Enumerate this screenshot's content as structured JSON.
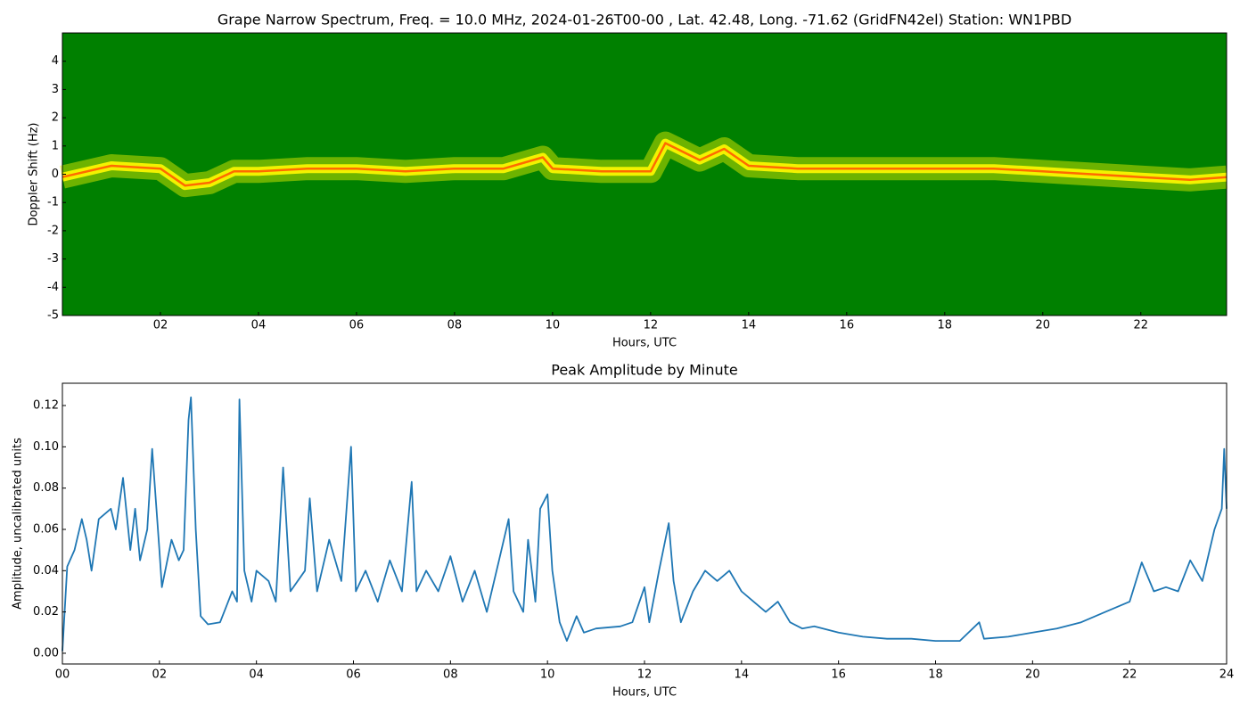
{
  "chart_data": [
    {
      "type": "spectrogram",
      "title": "Grape Narrow Spectrum, Freq. = 10.0 MHz, 2024-01-26T00-00 , Lat.  42.48, Long. -71.62 (GridFN42el) Station: WN1PBD",
      "xlabel": "Hours, UTC",
      "ylabel": "Doppler Shift (Hz)",
      "background_color": "#008000",
      "color": "#ff6a00",
      "glow_color": "#f2f200",
      "x": [
        0,
        1,
        2,
        2.5,
        3,
        3.5,
        4,
        5,
        6,
        7,
        8,
        9,
        9.8,
        10,
        11,
        12,
        12.3,
        13,
        13.5,
        14,
        15,
        16,
        17,
        18,
        19,
        20,
        21,
        22,
        23,
        23.75
      ],
      "values": [
        -0.1,
        0.3,
        0.2,
        -0.4,
        -0.3,
        0.1,
        0.1,
        0.2,
        0.2,
        0.1,
        0.2,
        0.2,
        0.6,
        0.2,
        0.1,
        0.1,
        1.1,
        0.5,
        0.9,
        0.3,
        0.2,
        0.2,
        0.2,
        0.2,
        0.2,
        0.1,
        0.0,
        -0.1,
        -0.2,
        -0.1
      ],
      "xlim": [
        0,
        23.75
      ],
      "ylim": [
        -5,
        5
      ],
      "xticks": [
        {
          "value": 2,
          "label": "02"
        },
        {
          "value": 4,
          "label": "04"
        },
        {
          "value": 6,
          "label": "06"
        },
        {
          "value": 8,
          "label": "08"
        },
        {
          "value": 10,
          "label": "10"
        },
        {
          "value": 12,
          "label": "12"
        },
        {
          "value": 14,
          "label": "14"
        },
        {
          "value": 16,
          "label": "16"
        },
        {
          "value": 18,
          "label": "18"
        },
        {
          "value": 20,
          "label": "20"
        },
        {
          "value": 22,
          "label": "22"
        }
      ],
      "yticks": [
        -5,
        -4,
        -3,
        -2,
        -1,
        0,
        1,
        2,
        3,
        4
      ]
    },
    {
      "type": "line",
      "title": "Peak Amplitude by Minute",
      "xlabel": "Hours, UTC",
      "ylabel": "Amplitude, uncalibrated units",
      "color": "#1f77b4",
      "x": [
        0,
        0.1,
        0.25,
        0.4,
        0.5,
        0.6,
        0.75,
        1.0,
        1.1,
        1.25,
        1.4,
        1.5,
        1.6,
        1.75,
        1.85,
        2.0,
        2.05,
        2.25,
        2.4,
        2.5,
        2.6,
        2.65,
        2.75,
        2.85,
        3.0,
        3.25,
        3.5,
        3.6,
        3.65,
        3.75,
        3.9,
        4.0,
        4.25,
        4.4,
        4.55,
        4.7,
        5.0,
        5.1,
        5.25,
        5.5,
        5.75,
        5.95,
        6.05,
        6.25,
        6.5,
        6.75,
        7.0,
        7.2,
        7.3,
        7.5,
        7.75,
        8.0,
        8.25,
        8.5,
        8.75,
        9.0,
        9.2,
        9.3,
        9.5,
        9.6,
        9.75,
        9.85,
        10.0,
        10.1,
        10.25,
        10.4,
        10.6,
        10.75,
        11.0,
        11.5,
        11.75,
        12.0,
        12.1,
        12.3,
        12.5,
        12.6,
        12.75,
        13.0,
        13.25,
        13.5,
        13.75,
        14.0,
        14.25,
        14.5,
        14.75,
        15.0,
        15.25,
        15.5,
        16.0,
        16.5,
        17.0,
        17.5,
        18.0,
        18.5,
        18.9,
        19.0,
        19.5,
        20.0,
        20.5,
        21.0,
        21.5,
        22.0,
        22.25,
        22.5,
        22.75,
        23.0,
        23.25,
        23.5,
        23.75,
        23.9,
        23.95,
        24.0
      ],
      "values": [
        0.001,
        0.042,
        0.05,
        0.065,
        0.055,
        0.04,
        0.065,
        0.07,
        0.06,
        0.085,
        0.05,
        0.07,
        0.045,
        0.06,
        0.099,
        0.05,
        0.032,
        0.055,
        0.045,
        0.05,
        0.113,
        0.124,
        0.06,
        0.018,
        0.014,
        0.015,
        0.03,
        0.025,
        0.123,
        0.04,
        0.025,
        0.04,
        0.035,
        0.025,
        0.09,
        0.03,
        0.04,
        0.075,
        0.03,
        0.055,
        0.035,
        0.1,
        0.03,
        0.04,
        0.025,
        0.045,
        0.03,
        0.083,
        0.03,
        0.04,
        0.03,
        0.047,
        0.025,
        0.04,
        0.02,
        0.045,
        0.065,
        0.03,
        0.02,
        0.055,
        0.025,
        0.07,
        0.077,
        0.04,
        0.015,
        0.006,
        0.018,
        0.01,
        0.012,
        0.013,
        0.015,
        0.032,
        0.015,
        0.04,
        0.063,
        0.035,
        0.015,
        0.03,
        0.04,
        0.035,
        0.04,
        0.03,
        0.025,
        0.02,
        0.025,
        0.015,
        0.012,
        0.013,
        0.01,
        0.008,
        0.007,
        0.007,
        0.006,
        0.006,
        0.015,
        0.007,
        0.008,
        0.01,
        0.012,
        0.015,
        0.02,
        0.025,
        0.044,
        0.03,
        0.032,
        0.03,
        0.045,
        0.035,
        0.06,
        0.07,
        0.099,
        0.07
      ],
      "xlim": [
        0,
        24
      ],
      "ylim": [
        -0.0052,
        0.1308
      ],
      "xticks": [
        {
          "value": 0,
          "label": "00"
        },
        {
          "value": 2,
          "label": "02"
        },
        {
          "value": 4,
          "label": "04"
        },
        {
          "value": 6,
          "label": "06"
        },
        {
          "value": 8,
          "label": "08"
        },
        {
          "value": 10,
          "label": "10"
        },
        {
          "value": 12,
          "label": "12"
        },
        {
          "value": 14,
          "label": "14"
        },
        {
          "value": 16,
          "label": "16"
        },
        {
          "value": 18,
          "label": "18"
        },
        {
          "value": 20,
          "label": "20"
        },
        {
          "value": 22,
          "label": "22"
        },
        {
          "value": 24,
          "label": "24"
        }
      ],
      "yticks": [
        {
          "value": 0,
          "label": "0.00"
        },
        {
          "value": 0.02,
          "label": "0.02"
        },
        {
          "value": 0.04,
          "label": "0.04"
        },
        {
          "value": 0.06,
          "label": "0.06"
        },
        {
          "value": 0.08,
          "label": "0.08"
        },
        {
          "value": 0.1,
          "label": "0.10"
        },
        {
          "value": 0.12,
          "label": "0.12"
        }
      ]
    }
  ]
}
